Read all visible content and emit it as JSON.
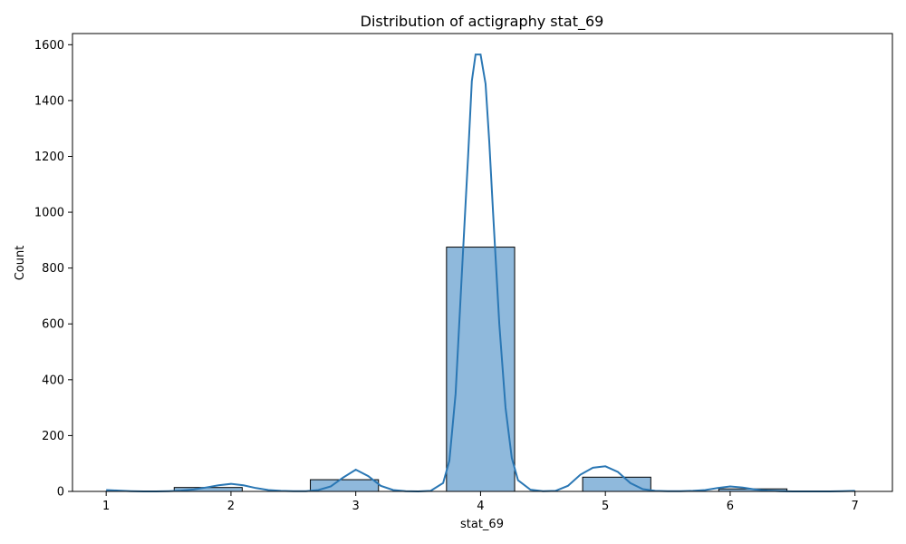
{
  "chart_data": {
    "type": "bar",
    "title": "Distribution of actigraphy stat_69",
    "xlabel": "stat_69",
    "ylabel": "Count",
    "xlim": [
      0.73,
      7.3
    ],
    "ylim": [
      0,
      1640
    ],
    "xticks": [
      1,
      2,
      3,
      4,
      5,
      6,
      7
    ],
    "yticks": [
      0,
      200,
      400,
      600,
      800,
      1000,
      1200,
      1400,
      1600
    ],
    "grid": false,
    "bars": [
      {
        "x0": 1.0,
        "x1": 1.545,
        "value": 1
      },
      {
        "x0": 1.545,
        "x1": 2.09,
        "value": 14
      },
      {
        "x0": 2.636,
        "x1": 3.182,
        "value": 42
      },
      {
        "x0": 3.727,
        "x1": 4.273,
        "value": 875
      },
      {
        "x0": 4.818,
        "x1": 5.364,
        "value": 51
      },
      {
        "x0": 5.909,
        "x1": 6.455,
        "value": 9
      },
      {
        "x0": 6.455,
        "x1": 7.0,
        "value": 1
      }
    ],
    "bar_color": "#8fb9dc",
    "kde_color": "#2a77b4",
    "kde": {
      "x": [
        1.0,
        1.1,
        1.2,
        1.3,
        1.4,
        1.5,
        1.6,
        1.7,
        1.8,
        1.9,
        2.0,
        2.1,
        2.2,
        2.3,
        2.4,
        2.5,
        2.6,
        2.7,
        2.8,
        2.9,
        3.0,
        3.1,
        3.2,
        3.3,
        3.4,
        3.5,
        3.6,
        3.7,
        3.75,
        3.8,
        3.85,
        3.9,
        3.93,
        3.96,
        4.0,
        4.04,
        4.07,
        4.1,
        4.15,
        4.2,
        4.25,
        4.3,
        4.4,
        4.5,
        4.6,
        4.7,
        4.8,
        4.9,
        5.0,
        5.1,
        5.2,
        5.3,
        5.4,
        5.5,
        5.6,
        5.7,
        5.8,
        5.9,
        6.0,
        6.1,
        6.2,
        6.3,
        6.4,
        6.5,
        6.6,
        6.7,
        6.8,
        6.9,
        7.0
      ],
      "y": [
        5,
        3,
        1,
        0,
        0,
        1,
        3,
        7,
        14,
        22,
        27,
        22,
        12,
        5,
        2,
        1,
        1,
        5,
        18,
        50,
        78,
        55,
        20,
        5,
        1,
        0,
        2,
        30,
        110,
        350,
        780,
        1200,
        1470,
        1565,
        1565,
        1460,
        1250,
        1000,
        600,
        300,
        120,
        40,
        6,
        1,
        2,
        20,
        60,
        85,
        90,
        70,
        30,
        8,
        2,
        1,
        1,
        2,
        5,
        12,
        18,
        14,
        7,
        3,
        1,
        0,
        0,
        0,
        0,
        1,
        2
      ]
    }
  }
}
